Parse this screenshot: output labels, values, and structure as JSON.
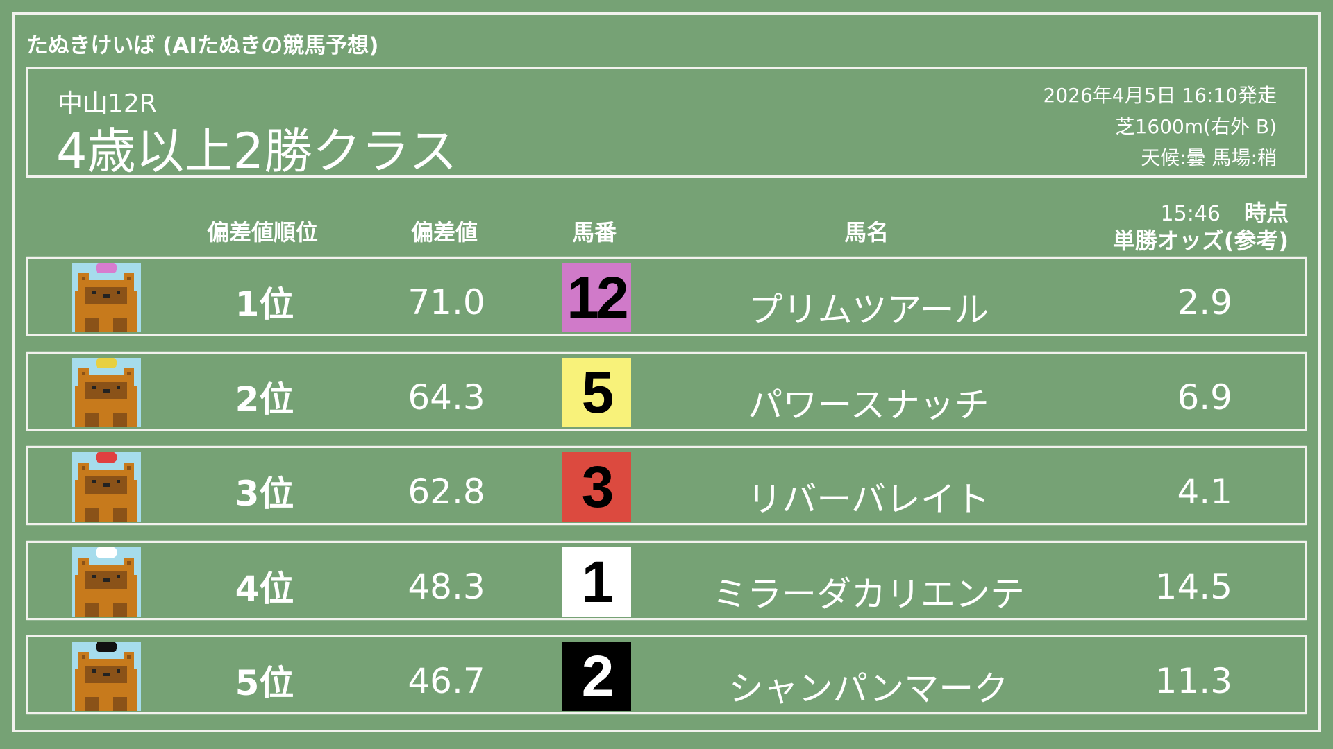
{
  "site_title": "たぬきけいば (AIたぬきの競馬予想)",
  "race": {
    "venue": "中山12R",
    "name": "4歳以上2勝クラス",
    "datetime": "2026年4月5日 16:10発走",
    "course": "芝1600m(右外 B)",
    "conditions": "天候:曇 馬場:稍"
  },
  "columns": {
    "rank": "偏差値順位",
    "score": "偏差値",
    "number": "馬番",
    "name": "馬名",
    "odds_time": "15:46",
    "odds_time_suffix": "時点",
    "odds": "単勝オッズ(参考)"
  },
  "colors": {
    "background": "#76a275",
    "chalk": "#f2f2ee"
  },
  "rows": [
    {
      "rank": "1位",
      "score": "71.0",
      "number": "12",
      "name": "プリムツアール",
      "odds": "2.9",
      "cap_color": "#d77ccf",
      "box_color": "#d07ac9",
      "num_color": "#000000",
      "avatar_icon": "tanuki-icon"
    },
    {
      "rank": "2位",
      "score": "64.3",
      "number": "5",
      "name": "パワースナッチ",
      "odds": "6.9",
      "cap_color": "#e8d040",
      "box_color": "#f8f27a",
      "num_color": "#000000",
      "avatar_icon": "tanuki-icon"
    },
    {
      "rank": "3位",
      "score": "62.8",
      "number": "3",
      "name": "リバーバレイト",
      "odds": "4.1",
      "cap_color": "#e04040",
      "box_color": "#dc4a3f",
      "num_color": "#000000",
      "avatar_icon": "tanuki-icon"
    },
    {
      "rank": "4位",
      "score": "48.3",
      "number": "1",
      "name": "ミラーダカリエンテ",
      "odds": "14.5",
      "cap_color": "#ffffff",
      "box_color": "#ffffff",
      "num_color": "#000000",
      "avatar_icon": "tanuki-icon"
    },
    {
      "rank": "5位",
      "score": "46.7",
      "number": "2",
      "name": "シャンパンマーク",
      "odds": "11.3",
      "cap_color": "#111111",
      "box_color": "#000000",
      "num_color": "#ffffff",
      "avatar_icon": "tanuki-icon"
    }
  ]
}
